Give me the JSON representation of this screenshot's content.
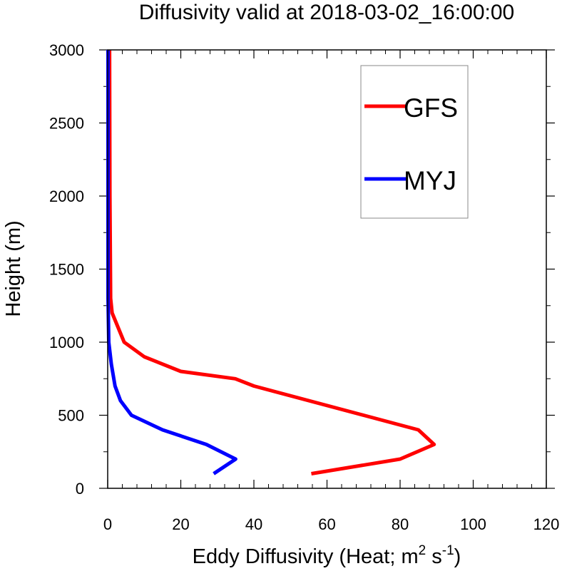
{
  "chart_data": {
    "type": "line",
    "title": "Diffusivity valid at 2018-03-02_16:00:00",
    "xlabel": {
      "prefix": "Eddy Diffusivity (Heat; m",
      "sup1": "2",
      "mid": " s",
      "sup2": "-1",
      "suffix": ")"
    },
    "ylabel": "Height (m)",
    "xlim": [
      0,
      120
    ],
    "ylim": [
      0,
      3000
    ],
    "xticks": [
      0,
      20,
      40,
      60,
      80,
      100,
      120
    ],
    "yticks": [
      0,
      500,
      1000,
      1500,
      2000,
      2500,
      3000
    ],
    "xminor": 4,
    "yminor": 1,
    "grid": false,
    "legend_position": "top-right",
    "series": [
      {
        "name": "GFS",
        "color": "#ff0000",
        "x": [
          55.7,
          80,
          89.3,
          85,
          70,
          40,
          34.9,
          20,
          10,
          4.5,
          1.2,
          0.8,
          0.6,
          0.5
        ],
        "y": [
          100,
          200,
          300,
          400,
          500,
          700,
          750,
          800,
          900,
          1000,
          1200,
          1300,
          2000,
          3000
        ]
      },
      {
        "name": "MYJ",
        "color": "#0000ff",
        "x": [
          29,
          35,
          27,
          15,
          6.5,
          3.5,
          2,
          1,
          0.3,
          0.1,
          0.1
        ],
        "y": [
          100,
          200,
          300,
          400,
          500,
          600,
          700,
          850,
          1000,
          1300,
          3000
        ]
      }
    ]
  }
}
